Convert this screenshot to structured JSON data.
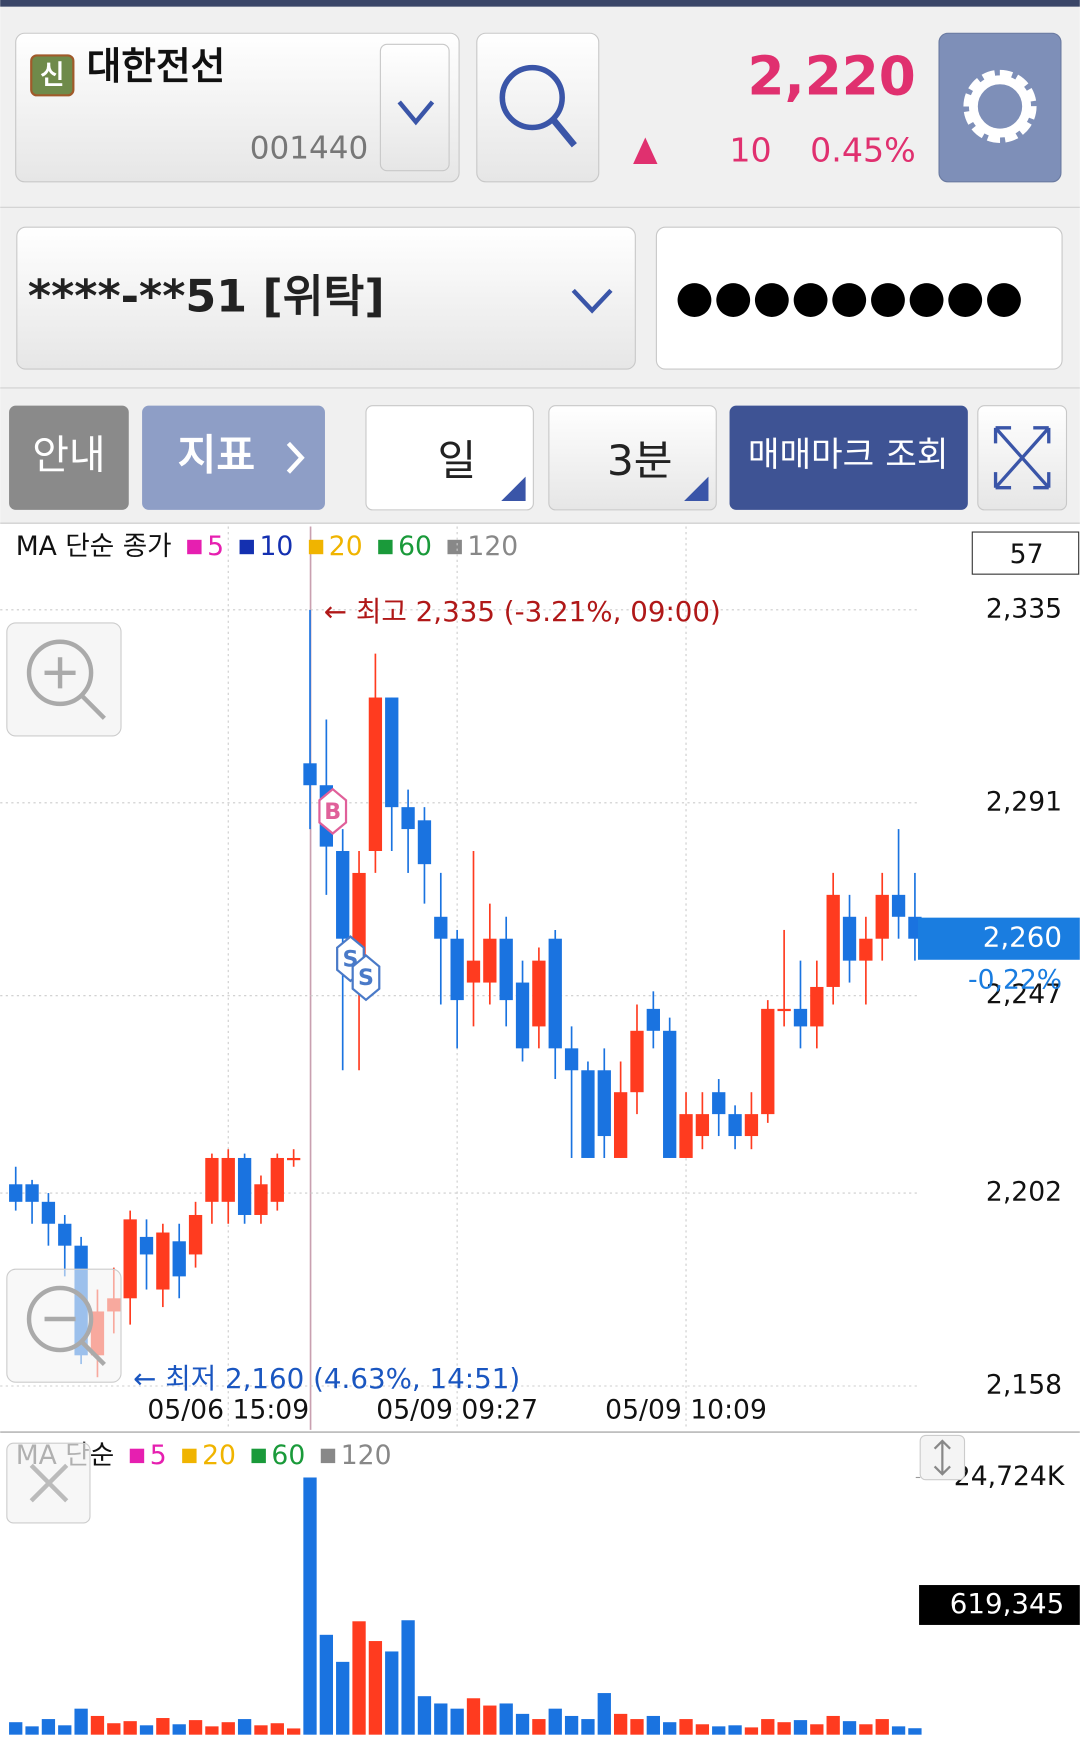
{
  "header": {
    "badge": "신",
    "name": "대한전선",
    "code": "001440",
    "price": "2,220",
    "change": "10",
    "change_rate": "0.45%"
  },
  "account": {
    "number": "****-**51 [위탁]",
    "password": "●●●●●●●●●"
  },
  "toolbar": {
    "info": "안내",
    "indicator": "지표",
    "period": "일",
    "interval": "3분",
    "trade_marks": "매매마크 조회"
  },
  "chart_data": [
    {
      "type": "candlestick",
      "legend_title": "MA 단순 종가",
      "ma_legend": [
        {
          "name": "5",
          "color": "#e61fb0"
        },
        {
          "name": "10",
          "color": "#1430b0"
        },
        {
          "name": "20",
          "color": "#f0b400"
        },
        {
          "name": "60",
          "color": "#1a9a3a"
        },
        {
          "name": "120",
          "color": "#888888"
        }
      ],
      "count_label": "57",
      "categories": [
        null,
        null,
        null,
        null,
        null,
        null,
        null,
        null,
        null,
        null,
        null,
        null,
        null,
        "05/06 15:09",
        null,
        null,
        null,
        null,
        null,
        null,
        null,
        null,
        null,
        null,
        null,
        null,
        null,
        "05/09 09:27",
        null,
        null,
        null,
        null,
        null,
        null,
        null,
        null,
        null,
        null,
        null,
        null,
        null,
        "05/09 10:09",
        null,
        null,
        null,
        null,
        null,
        null,
        null,
        null,
        null,
        null,
        null,
        null,
        null,
        null
      ],
      "open": [
        2204,
        2204,
        2200,
        2195,
        2190,
        2165,
        2175,
        2178,
        2192,
        2180,
        2191,
        2188,
        2200,
        2200,
        2210,
        2197,
        2200,
        2210,
        2300,
        2295,
        2280,
        2255,
        2280,
        2315,
        2290,
        2287,
        2265,
        2260,
        2250,
        2250,
        2260,
        2250,
        2240,
        2260,
        2235,
        2230,
        2230,
        2210,
        2225,
        2244,
        2239,
        2210,
        2215,
        2225,
        2220,
        2215,
        2220,
        2244,
        2244,
        2240,
        2249,
        2265,
        2255,
        2260,
        2270,
        2265
      ],
      "high": [
        2208,
        2205,
        2202,
        2197,
        2192,
        2180,
        2185,
        2198,
        2196,
        2195,
        2195,
        2200,
        2211,
        2212,
        2211,
        2206,
        2211,
        2212,
        2335,
        2310,
        2285,
        2280,
        2325,
        2315,
        2294,
        2290,
        2275,
        2262,
        2280,
        2268,
        2265,
        2255,
        2258,
        2262,
        2240,
        2232,
        2235,
        2232,
        2245,
        2248,
        2242,
        2225,
        2225,
        2228,
        2222,
        2225,
        2246,
        2262,
        2255,
        2255,
        2275,
        2270,
        2265,
        2275,
        2285,
        2275
      ],
      "low": [
        2198,
        2195,
        2190,
        2183,
        2163,
        2160,
        2170,
        2172,
        2180,
        2176,
        2178,
        2185,
        2195,
        2195,
        2195,
        2195,
        2198,
        2208,
        2285,
        2270,
        2230,
        2230,
        2275,
        2280,
        2275,
        2268,
        2245,
        2235,
        2240,
        2245,
        2240,
        2232,
        2235,
        2228,
        2210,
        2210,
        2210,
        2210,
        2220,
        2235,
        2210,
        2210,
        2212,
        2215,
        2212,
        2212,
        2218,
        2240,
        2235,
        2235,
        2245,
        2250,
        2245,
        2255,
        2260,
        2255
      ],
      "close": [
        2200,
        2200,
        2195,
        2190,
        2165,
        2175,
        2178,
        2196,
        2188,
        2193,
        2183,
        2197,
        2210,
        2210,
        2197,
        2204,
        2210,
        2210,
        2295,
        2281,
        2260,
        2275,
        2315,
        2290,
        2285,
        2277,
        2260,
        2246,
        2255,
        2260,
        2246,
        2235,
        2255,
        2235,
        2230,
        2210,
        2215,
        2225,
        2239,
        2239,
        2210,
        2220,
        2220,
        2220,
        2215,
        2220,
        2244,
        2244,
        2240,
        2249,
        2270,
        2255,
        2260,
        2270,
        2265,
        2260
      ],
      "up_color": "#ff3b1f",
      "down_color": "#1a73e0",
      "ylim": [
        2148,
        2354
      ],
      "yticks": [
        {
          "value": 2335,
          "label": "2,335"
        },
        {
          "value": 2291,
          "label": "2,291"
        },
        {
          "value": 2247,
          "label": "2,247"
        },
        {
          "value": 2202,
          "label": "2,202"
        },
        {
          "value": 2158,
          "label": "2,158"
        }
      ],
      "last_price": {
        "value": 2260,
        "label": "2,260"
      },
      "last_change": "-0,22%",
      "annotations": [
        "← 최고 2,335 (-3.21%, 09:00)",
        "← 최저 2,160 (4.63%, 14:51)"
      ],
      "trade_marks": [
        "B",
        "S",
        "S"
      ]
    },
    {
      "type": "bar",
      "legend_title": "MA 단순",
      "ma_legend": [
        {
          "name": "5",
          "color": "#e61fb0"
        },
        {
          "name": "20",
          "color": "#f0b400"
        },
        {
          "name": "60",
          "color": "#1a9a3a"
        },
        {
          "name": "120",
          "color": "#888888"
        }
      ],
      "values": [
        1200000,
        800000,
        1500000,
        900000,
        2500000,
        1800000,
        1100000,
        1300000,
        900000,
        1600000,
        1000000,
        1400000,
        800000,
        1200000,
        1500000,
        900000,
        1100000,
        600000,
        24724000,
        9600000,
        7000000,
        10900000,
        9000000,
        8000000,
        11000000,
        3700000,
        3000000,
        2500000,
        3500000,
        2800000,
        3000000,
        2000000,
        1500000,
        2500000,
        1800000,
        1500000,
        4000000,
        2000000,
        1500000,
        1800000,
        1200000,
        1500000,
        1000000,
        800000,
        900000,
        700000,
        1500000,
        1200000,
        1400000,
        1000000,
        1800000,
        1300000,
        1000000,
        1500000,
        800000,
        619345
      ],
      "ylim": [
        0,
        28770000
      ],
      "yticks": [
        {
          "value": 24724000,
          "label": "24,724K"
        }
      ],
      "current_label": "619,345"
    }
  ]
}
